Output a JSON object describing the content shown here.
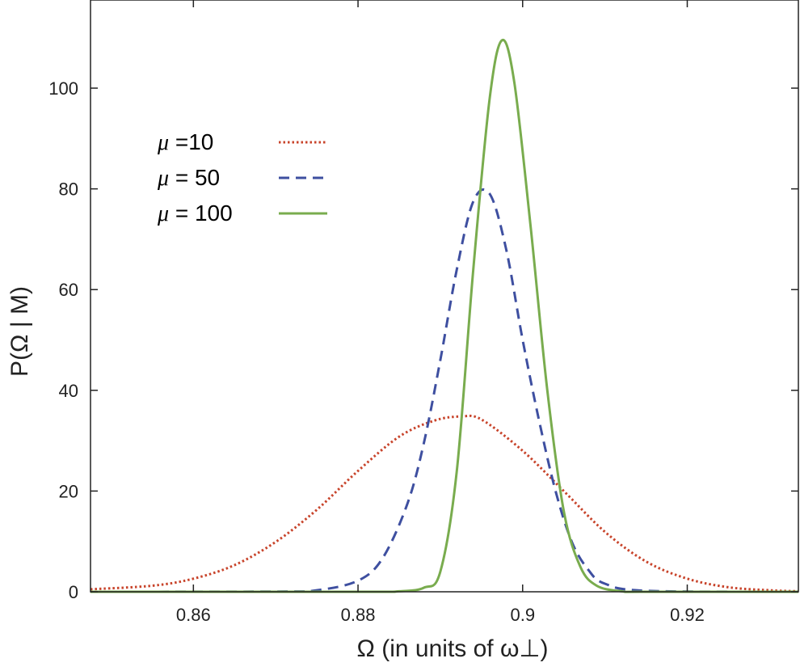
{
  "chart_data": {
    "type": "line",
    "xlabel": "Ω (in units of ω⊥)",
    "ylabel": "P(Ω | M)",
    "xlim": [
      0.8475,
      0.9335
    ],
    "ylim": [
      0,
      117.5
    ],
    "xticks": [
      0.86,
      0.88,
      0.9,
      0.92
    ],
    "xtick_labels": [
      "0.86",
      "0.88",
      "0.9",
      "0.92"
    ],
    "yticks": [
      0,
      20,
      40,
      60,
      80,
      100
    ],
    "ytick_labels": [
      "0",
      "20",
      "40",
      "60",
      "80",
      "100"
    ],
    "grid": false,
    "legend_position": "top-left",
    "series": [
      {
        "name": "μ =10",
        "legend_symbol": "μ",
        "legend_text": " =10",
        "style": "dotted",
        "color": "#c8442b",
        "x": [
          0.8475,
          0.855,
          0.86,
          0.865,
          0.87,
          0.875,
          0.88,
          0.885,
          0.8893,
          0.8925,
          0.895,
          0.9,
          0.905,
          0.91,
          0.915,
          0.92,
          0.925,
          0.93,
          0.9335
        ],
        "y": [
          0.5,
          1.2,
          2.6,
          5.3,
          9.9,
          16.3,
          24.0,
          30.8,
          34.0,
          34.8,
          34.2,
          28.0,
          20.0,
          11.9,
          6.0,
          2.6,
          0.9,
          0.3,
          0.1
        ]
      },
      {
        "name": "μ = 50",
        "legend_symbol": "μ",
        "legend_text": " = 50",
        "style": "dashed",
        "color": "#3e4fa0",
        "x": [
          0.8475,
          0.87,
          0.875,
          0.88,
          0.883,
          0.886,
          0.888,
          0.89,
          0.892,
          0.894,
          0.896,
          0.898,
          0.9,
          0.902,
          0.904,
          0.906,
          0.908,
          0.91,
          0.915,
          0.9335
        ],
        "y": [
          0,
          0.05,
          0.3,
          2.2,
          6.7,
          17.5,
          29.5,
          46.0,
          64.0,
          77.5,
          79.0,
          68.0,
          50.0,
          34.0,
          20.0,
          9.8,
          4.3,
          1.6,
          0.2,
          0
        ]
      },
      {
        "name": "μ = 100",
        "legend_symbol": "μ",
        "legend_text": " = 100",
        "style": "solid",
        "color": "#79ac4e",
        "x": [
          0.8475,
          0.88,
          0.885,
          0.888,
          0.89,
          0.892,
          0.894,
          0.896,
          0.8975,
          0.899,
          0.901,
          0.903,
          0.905,
          0.907,
          0.909,
          0.912,
          0.915,
          0.9335
        ],
        "y": [
          0,
          0,
          0.1,
          0.8,
          4.0,
          24.0,
          64.0,
          98.0,
          109.5,
          101.0,
          72.0,
          40.0,
          16.0,
          5.0,
          1.2,
          0.1,
          0,
          0
        ]
      }
    ]
  }
}
